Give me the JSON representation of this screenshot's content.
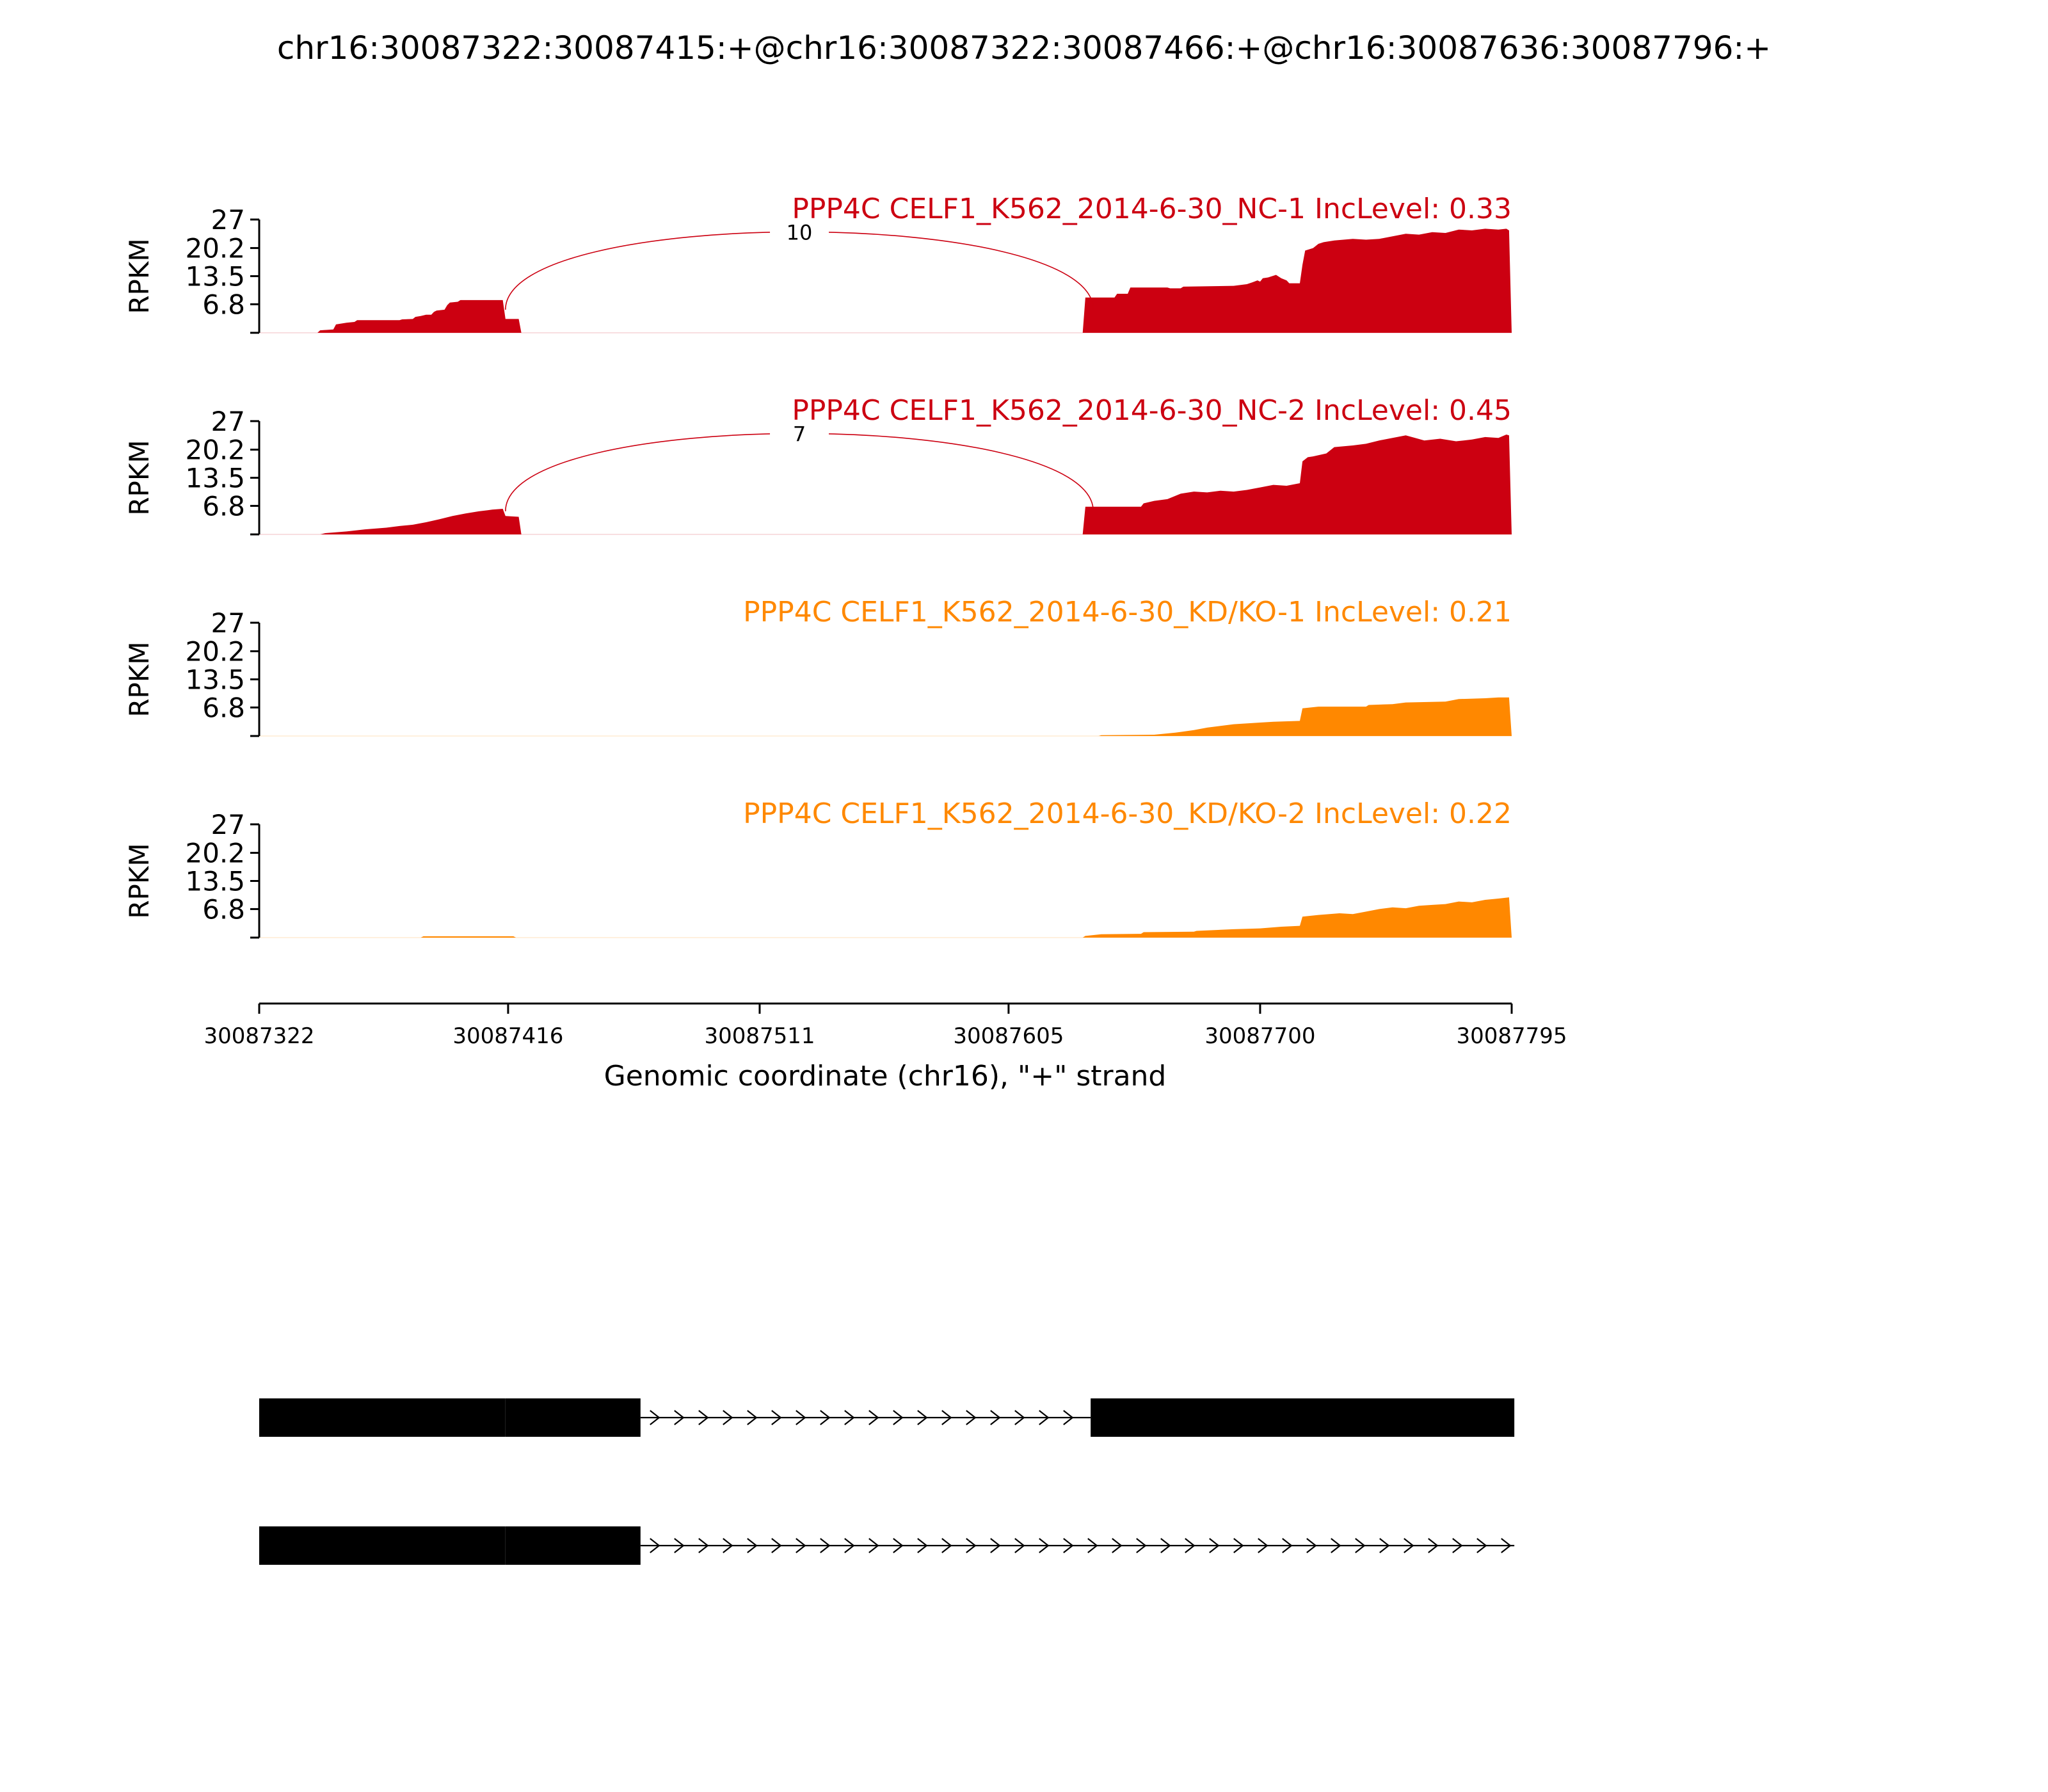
{
  "chart_data": {
    "type": "area",
    "title": "chr16:30087322:30087415:+@chr16:30087322:30087466:+@chr16:30087636:30087796:+",
    "xlabel": "Genomic coordinate (chr16), \"+\" strand",
    "ylabel": "RPKM",
    "xlim": [
      30087322,
      30087795
    ],
    "ylim": [
      0,
      27
    ],
    "x_ticks": [
      30087322,
      30087416,
      30087511,
      30087605,
      30087700,
      30087795
    ],
    "x_tick_labels": [
      "30087322",
      "30087416",
      "30087511",
      "30087605",
      "30087700",
      "30087795"
    ],
    "y_ticks": [
      6.8,
      13.5,
      20.2,
      27
    ],
    "y_tick_labels": [
      "6.8",
      "13.5",
      "20.2",
      "27"
    ],
    "grid": false,
    "colors": {
      "nc": "#cc0011",
      "kd": "#ff8800"
    },
    "tracks": [
      {
        "label": "PPP4C CELF1_K562_2014-6-30_NC-1 IncLevel: 0.33",
        "color": "#cc0011",
        "junction": {
          "from": 30087415,
          "to": 30087637,
          "count": "10"
        },
        "coverage": [
          [
            30087322,
            0
          ],
          [
            30087344,
            0
          ],
          [
            30087345,
            0.6
          ],
          [
            30087350,
            0.8
          ],
          [
            30087351,
            2.0
          ],
          [
            30087355,
            2.4
          ],
          [
            30087358,
            2.6
          ],
          [
            30087359,
            3.0
          ],
          [
            30087375,
            3.0
          ],
          [
            30087376,
            3.2
          ],
          [
            30087380,
            3.3
          ],
          [
            30087381,
            3.8
          ],
          [
            30087383,
            4.0
          ],
          [
            30087385,
            4.3
          ],
          [
            30087387,
            4.3
          ],
          [
            30087388,
            5.0
          ],
          [
            30087389,
            5.3
          ],
          [
            30087392,
            5.5
          ],
          [
            30087393,
            6.6
          ],
          [
            30087394,
            7.2
          ],
          [
            30087397,
            7.4
          ],
          [
            30087398,
            7.8
          ],
          [
            30087414,
            7.8
          ],
          [
            30087415,
            3.3
          ],
          [
            30087420,
            3.3
          ],
          [
            30087421,
            0
          ],
          [
            30087633,
            0
          ],
          [
            30087634,
            8.4
          ],
          [
            30087645,
            8.4
          ],
          [
            30087646,
            9.3
          ],
          [
            30087650,
            9.3
          ],
          [
            30087651,
            10.8
          ],
          [
            30087665,
            10.8
          ],
          [
            30087666,
            10.6
          ],
          [
            30087670,
            10.6
          ],
          [
            30087671,
            11.0
          ],
          [
            30087690,
            11.2
          ],
          [
            30087695,
            11.6
          ],
          [
            30087697,
            12.0
          ],
          [
            30087699,
            12.5
          ],
          [
            30087700,
            12.2
          ],
          [
            30087701,
            13.0
          ],
          [
            30087703,
            13.2
          ],
          [
            30087706,
            13.8
          ],
          [
            30087708,
            13.0
          ],
          [
            30087710,
            12.5
          ],
          [
            30087711,
            11.8
          ],
          [
            30087715,
            11.8
          ],
          [
            30087716,
            16.2
          ],
          [
            30087717,
            19.6
          ],
          [
            30087720,
            20.2
          ],
          [
            30087722,
            21.2
          ],
          [
            30087724,
            21.6
          ],
          [
            30087728,
            22.0
          ],
          [
            30087735,
            22.4
          ],
          [
            30087740,
            22.2
          ],
          [
            30087745,
            22.4
          ],
          [
            30087750,
            23.0
          ],
          [
            30087755,
            23.6
          ],
          [
            30087760,
            23.4
          ],
          [
            30087765,
            24.0
          ],
          [
            30087770,
            23.8
          ],
          [
            30087775,
            24.6
          ],
          [
            30087780,
            24.4
          ],
          [
            30087785,
            24.8
          ],
          [
            30087790,
            24.6
          ],
          [
            30087793,
            24.8
          ],
          [
            30087794,
            24.4
          ],
          [
            30087795,
            0
          ]
        ]
      },
      {
        "label": "PPP4C CELF1_K562_2014-6-30_NC-2 IncLevel: 0.45",
        "color": "#cc0011",
        "junction": {
          "from": 30087415,
          "to": 30087637,
          "count": "7"
        },
        "coverage": [
          [
            30087322,
            0
          ],
          [
            30087345,
            0
          ],
          [
            30087347,
            0.3
          ],
          [
            30087355,
            0.7
          ],
          [
            30087362,
            1.2
          ],
          [
            30087370,
            1.6
          ],
          [
            30087375,
            2.0
          ],
          [
            30087380,
            2.3
          ],
          [
            30087385,
            2.9
          ],
          [
            30087390,
            3.6
          ],
          [
            30087395,
            4.4
          ],
          [
            30087400,
            5.0
          ],
          [
            30087405,
            5.5
          ],
          [
            30087410,
            5.9
          ],
          [
            30087414,
            6.1
          ],
          [
            30087415,
            4.4
          ],
          [
            30087420,
            4.2
          ],
          [
            30087421,
            0
          ],
          [
            30087633,
            0
          ],
          [
            30087634,
            6.6
          ],
          [
            30087655,
            6.6
          ],
          [
            30087656,
            7.4
          ],
          [
            30087660,
            8.0
          ],
          [
            30087665,
            8.4
          ],
          [
            30087670,
            9.7
          ],
          [
            30087675,
            10.2
          ],
          [
            30087680,
            10.0
          ],
          [
            30087685,
            10.4
          ],
          [
            30087690,
            10.2
          ],
          [
            30087695,
            10.6
          ],
          [
            30087700,
            11.2
          ],
          [
            30087705,
            11.8
          ],
          [
            30087710,
            11.6
          ],
          [
            30087715,
            12.2
          ],
          [
            30087716,
            17.4
          ],
          [
            30087718,
            18.4
          ],
          [
            30087720,
            18.6
          ],
          [
            30087725,
            19.3
          ],
          [
            30087728,
            20.8
          ],
          [
            30087735,
            21.2
          ],
          [
            30087740,
            21.6
          ],
          [
            30087745,
            22.4
          ],
          [
            30087750,
            23.0
          ],
          [
            30087755,
            23.6
          ],
          [
            30087758,
            23.1
          ],
          [
            30087762,
            22.4
          ],
          [
            30087768,
            22.8
          ],
          [
            30087774,
            22.2
          ],
          [
            30087780,
            22.6
          ],
          [
            30087785,
            23.2
          ],
          [
            30087790,
            23.0
          ],
          [
            30087793,
            23.8
          ],
          [
            30087794,
            23.6
          ],
          [
            30087795,
            0
          ]
        ]
      },
      {
        "label": "PPP4C CELF1_K562_2014-6-30_KD/KO-1 IncLevel: 0.21",
        "color": "#ff8800",
        "junction": null,
        "coverage": [
          [
            30087322,
            0
          ],
          [
            30087639,
            0
          ],
          [
            30087640,
            0.2
          ],
          [
            30087660,
            0.3
          ],
          [
            30087668,
            0.8
          ],
          [
            30087675,
            1.4
          ],
          [
            30087680,
            2.0
          ],
          [
            30087685,
            2.4
          ],
          [
            30087690,
            2.8
          ],
          [
            30087700,
            3.2
          ],
          [
            30087705,
            3.4
          ],
          [
            30087715,
            3.6
          ],
          [
            30087716,
            6.6
          ],
          [
            30087722,
            7.0
          ],
          [
            30087740,
            7.0
          ],
          [
            30087741,
            7.4
          ],
          [
            30087750,
            7.6
          ],
          [
            30087755,
            8.0
          ],
          [
            30087770,
            8.2
          ],
          [
            30087775,
            8.8
          ],
          [
            30087785,
            9.0
          ],
          [
            30087790,
            9.2
          ],
          [
            30087794,
            9.2
          ],
          [
            30087795,
            0
          ]
        ]
      },
      {
        "label": "PPP4C CELF1_K562_2014-6-30_KD/KO-2 IncLevel: 0.22",
        "color": "#ff8800",
        "junction": null,
        "coverage": [
          [
            30087322,
            0
          ],
          [
            30087383,
            0
          ],
          [
            30087384,
            0.3
          ],
          [
            30087418,
            0.3
          ],
          [
            30087419,
            0
          ],
          [
            30087633,
            0
          ],
          [
            30087634,
            0.4
          ],
          [
            30087640,
            0.8
          ],
          [
            30087655,
            0.9
          ],
          [
            30087656,
            1.3
          ],
          [
            30087675,
            1.4
          ],
          [
            30087676,
            1.6
          ],
          [
            30087690,
            2.0
          ],
          [
            30087700,
            2.2
          ],
          [
            30087708,
            2.6
          ],
          [
            30087715,
            2.8
          ],
          [
            30087716,
            5.0
          ],
          [
            30087722,
            5.4
          ],
          [
            30087730,
            5.8
          ],
          [
            30087735,
            5.6
          ],
          [
            30087740,
            6.2
          ],
          [
            30087745,
            6.8
          ],
          [
            30087750,
            7.2
          ],
          [
            30087755,
            7.0
          ],
          [
            30087760,
            7.6
          ],
          [
            30087765,
            7.8
          ],
          [
            30087770,
            8.0
          ],
          [
            30087775,
            8.6
          ],
          [
            30087780,
            8.4
          ],
          [
            30087785,
            9.0
          ],
          [
            30087790,
            9.3
          ],
          [
            30087794,
            9.6
          ],
          [
            30087795,
            0
          ]
        ]
      }
    ],
    "isoforms": [
      {
        "exons": [
          [
            30087322,
            30087415
          ],
          [
            30087415,
            30087466
          ],
          [
            30087636,
            30087796
          ]
        ],
        "intron": [
          30087466,
          30087636
        ]
      },
      {
        "exons": [
          [
            30087322,
            30087415
          ],
          [
            30087415,
            30087466
          ]
        ],
        "intron": [
          30087466,
          30087796
        ]
      }
    ]
  }
}
